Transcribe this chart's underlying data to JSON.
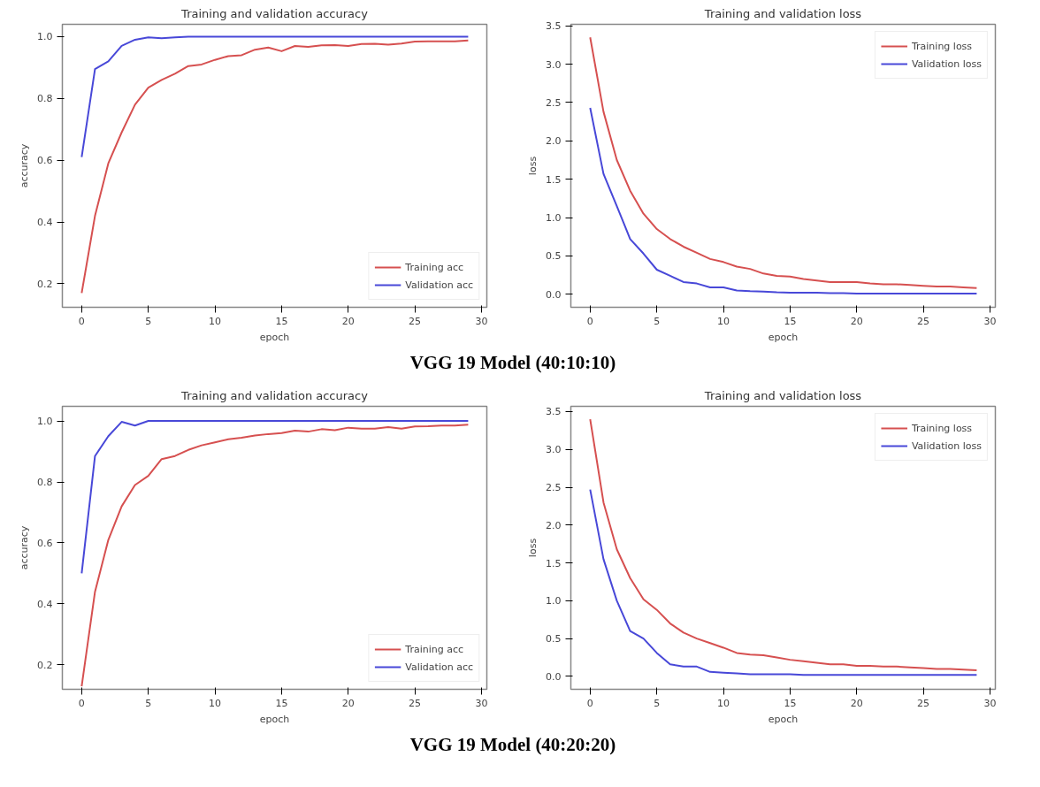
{
  "chart_data": [
    {
      "type": "line",
      "title": "Training and validation accuracy",
      "xlabel": "epoch",
      "ylabel": "accuracy",
      "x": [
        0,
        1,
        2,
        3,
        4,
        5,
        6,
        7,
        8,
        9,
        10,
        11,
        12,
        13,
        14,
        15,
        16,
        17,
        18,
        19,
        20,
        21,
        22,
        23,
        24,
        25,
        26,
        27,
        28,
        29
      ],
      "series": [
        {
          "name": "Training acc",
          "color": "#d65050",
          "values": [
            0.17,
            0.42,
            0.59,
            0.69,
            0.78,
            0.835,
            0.86,
            0.88,
            0.905,
            0.91,
            0.925,
            0.937,
            0.94,
            0.958,
            0.965,
            0.953,
            0.97,
            0.967,
            0.972,
            0.973,
            0.97,
            0.976,
            0.977,
            0.974,
            0.978,
            0.984,
            0.985,
            0.985,
            0.985,
            0.988
          ]
        },
        {
          "name": "Validation acc",
          "color": "#4848d8",
          "values": [
            0.61,
            0.895,
            0.92,
            0.97,
            0.99,
            0.998,
            0.995,
            0.998,
            1.0,
            1.0,
            1.0,
            1.0,
            1.0,
            1.0,
            1.0,
            1.0,
            1.0,
            1.0,
            1.0,
            1.0,
            1.0,
            1.0,
            1.0,
            1.0,
            1.0,
            1.0,
            1.0,
            1.0,
            1.0,
            1.0
          ]
        }
      ],
      "xlim": [
        -1.45,
        30.4
      ],
      "ylim": [
        0.124,
        1.04
      ],
      "xticks": [
        0,
        5,
        10,
        15,
        20,
        25,
        30
      ],
      "yticks": [
        0.2,
        0.4,
        0.6,
        0.8,
        {
          "value": 1.0,
          "label": "1.0"
        }
      ],
      "grid": false,
      "legend": "bottom right"
    },
    {
      "type": "line",
      "title": "Training and validation loss",
      "xlabel": "epoch",
      "ylabel": "loss",
      "x": [
        0,
        1,
        2,
        3,
        4,
        5,
        6,
        7,
        8,
        9,
        10,
        11,
        12,
        13,
        14,
        15,
        16,
        17,
        18,
        19,
        20,
        21,
        22,
        23,
        24,
        25,
        26,
        27,
        28,
        29
      ],
      "series": [
        {
          "name": "Training loss",
          "color": "#d65050",
          "values": [
            3.35,
            2.38,
            1.75,
            1.35,
            1.05,
            0.85,
            0.72,
            0.62,
            0.54,
            0.46,
            0.42,
            0.36,
            0.33,
            0.27,
            0.24,
            0.23,
            0.2,
            0.18,
            0.16,
            0.16,
            0.16,
            0.14,
            0.13,
            0.13,
            0.12,
            0.11,
            0.1,
            0.1,
            0.09,
            0.08
          ]
        },
        {
          "name": "Validation loss",
          "color": "#4848d8",
          "values": [
            2.43,
            1.57,
            1.15,
            0.72,
            0.53,
            0.32,
            0.24,
            0.16,
            0.14,
            0.09,
            0.09,
            0.05,
            0.04,
            0.035,
            0.025,
            0.02,
            0.02,
            0.02,
            0.015,
            0.015,
            0.01,
            0.01,
            0.01,
            0.01,
            0.01,
            0.01,
            0.01,
            0.01,
            0.01,
            0.01
          ]
        }
      ],
      "xlim": [
        -1.45,
        30.4
      ],
      "ylim": [
        -0.17,
        3.52
      ],
      "xticks": [
        0,
        5,
        10,
        15,
        20,
        25,
        30
      ],
      "yticks": [
        {
          "value": 0,
          "label": "0.0"
        },
        0.5,
        {
          "value": 1,
          "label": "1.0"
        },
        1.5,
        {
          "value": 2,
          "label": "2.0"
        },
        2.5,
        {
          "value": 3,
          "label": "3.0"
        },
        3.5
      ],
      "grid": false,
      "legend": "top right",
      "annotations": [
        "VGG 19 Model (40:10:10)"
      ]
    },
    {
      "type": "line",
      "title": "Training and validation accuracy",
      "xlabel": "epoch",
      "ylabel": "accuracy",
      "x": [
        0,
        1,
        2,
        3,
        4,
        5,
        6,
        7,
        8,
        9,
        10,
        11,
        12,
        13,
        14,
        15,
        16,
        17,
        18,
        19,
        20,
        21,
        22,
        23,
        24,
        25,
        26,
        27,
        28,
        29
      ],
      "series": [
        {
          "name": "Training acc",
          "color": "#d65050",
          "values": [
            0.13,
            0.44,
            0.61,
            0.72,
            0.79,
            0.82,
            0.875,
            0.885,
            0.905,
            0.92,
            0.93,
            0.94,
            0.945,
            0.952,
            0.957,
            0.96,
            0.968,
            0.965,
            0.973,
            0.97,
            0.978,
            0.975,
            0.975,
            0.98,
            0.975,
            0.982,
            0.983,
            0.985,
            0.985,
            0.988
          ]
        },
        {
          "name": "Validation acc",
          "color": "#4848d8",
          "values": [
            0.5,
            0.885,
            0.95,
            0.997,
            0.985,
            1.0,
            1.0,
            1.0,
            1.0,
            1.0,
            1.0,
            1.0,
            1.0,
            1.0,
            1.0,
            1.0,
            1.0,
            1.0,
            1.0,
            1.0,
            1.0,
            1.0,
            1.0,
            1.0,
            1.0,
            1.0,
            1.0,
            1.0,
            1.0,
            1.0
          ]
        }
      ],
      "xlim": [
        -1.45,
        30.4
      ],
      "ylim": [
        0.12,
        1.048
      ],
      "xticks": [
        0,
        5,
        10,
        15,
        20,
        25,
        30
      ],
      "yticks": [
        0.2,
        0.4,
        0.6,
        0.8,
        {
          "value": 1.0,
          "label": "1.0"
        }
      ],
      "grid": false,
      "legend": "bottom right"
    },
    {
      "type": "line",
      "title": "Training and validation loss",
      "xlabel": "epoch",
      "ylabel": "loss",
      "x": [
        0,
        1,
        2,
        3,
        4,
        5,
        6,
        7,
        8,
        9,
        10,
        11,
        12,
        13,
        14,
        15,
        16,
        17,
        18,
        19,
        20,
        21,
        22,
        23,
        24,
        25,
        26,
        27,
        28,
        29
      ],
      "series": [
        {
          "name": "Training loss",
          "color": "#d65050",
          "values": [
            3.4,
            2.3,
            1.68,
            1.3,
            1.02,
            0.88,
            0.7,
            0.58,
            0.5,
            0.44,
            0.38,
            0.31,
            0.29,
            0.28,
            0.25,
            0.22,
            0.2,
            0.18,
            0.16,
            0.16,
            0.14,
            0.14,
            0.13,
            0.13,
            0.12,
            0.11,
            0.1,
            0.1,
            0.09,
            0.08
          ]
        },
        {
          "name": "Validation loss",
          "color": "#4848d8",
          "values": [
            2.47,
            1.55,
            1.0,
            0.6,
            0.5,
            0.31,
            0.16,
            0.13,
            0.13,
            0.06,
            0.05,
            0.04,
            0.03,
            0.03,
            0.03,
            0.03,
            0.02,
            0.02,
            0.02,
            0.02,
            0.02,
            0.02,
            0.02,
            0.02,
            0.02,
            0.02,
            0.02,
            0.02,
            0.02,
            0.02
          ]
        }
      ],
      "xlim": [
        -1.45,
        30.4
      ],
      "ylim": [
        -0.17,
        3.57
      ],
      "xticks": [
        0,
        5,
        10,
        15,
        20,
        25,
        30
      ],
      "yticks": [
        {
          "value": 0,
          "label": "0.0"
        },
        0.5,
        {
          "value": 1,
          "label": "1.0"
        },
        1.5,
        {
          "value": 2,
          "label": "2.0"
        },
        2.5,
        {
          "value": 3,
          "label": "3.0"
        },
        3.5
      ],
      "grid": false,
      "legend": "top right",
      "annotations": [
        "VGG 19 Model (40:20:20)"
      ]
    }
  ]
}
